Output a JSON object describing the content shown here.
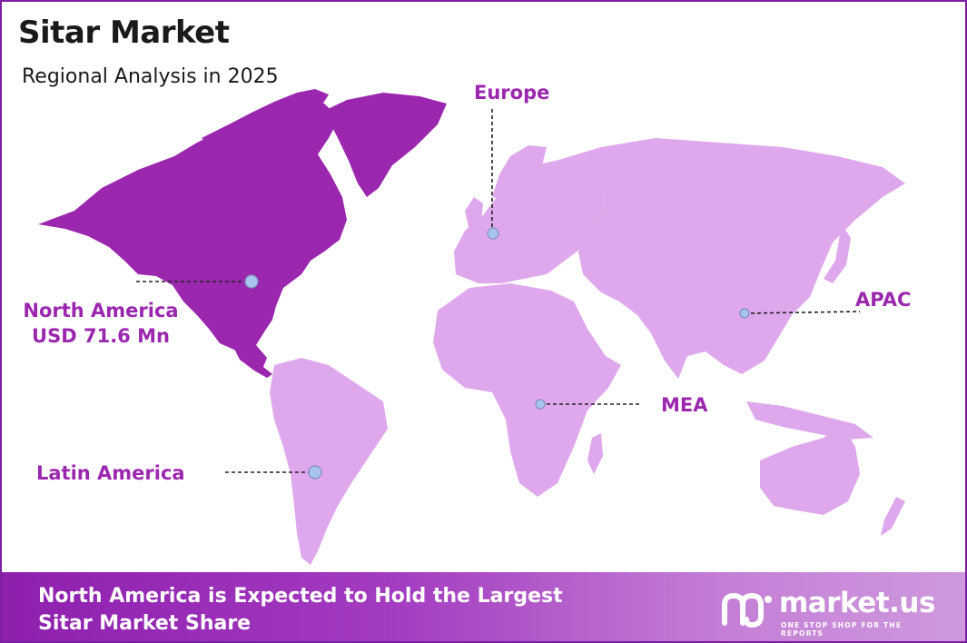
{
  "header": {
    "title": "Sitar Market",
    "subtitle": "Regional Analysis in 2025"
  },
  "map": {
    "highlight_color": "#9b27af",
    "land_color": "#dfa8ec",
    "marker_color": "#a9c4ec",
    "regions": {
      "europe": {
        "label": "Europe"
      },
      "north_america": {
        "label": "North America",
        "value": "USD 71.6 Mn",
        "highlighted": true
      },
      "latin_america": {
        "label": "Latin America"
      },
      "mea": {
        "label": "MEA"
      },
      "apac": {
        "label": "APAC"
      }
    }
  },
  "footer": {
    "headline_line1": "North America is Expected to Hold the Largest",
    "headline_line2": "Sitar Market Share",
    "brand": "market.us",
    "tagline": "ONE STOP SHOP FOR THE REPORTS"
  }
}
